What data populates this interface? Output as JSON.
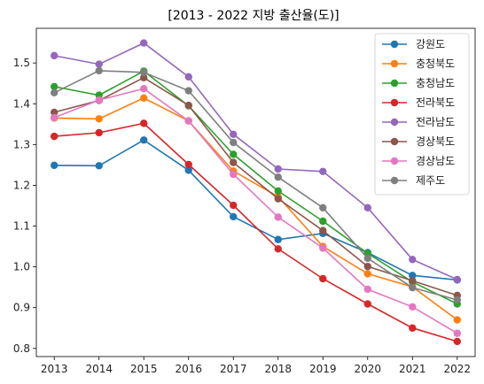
{
  "chart_data": {
    "type": "line",
    "title": "[2013 - 2022 지방 출산율(도)]",
    "xlabel": "",
    "ylabel": "",
    "x": [
      2013,
      2014,
      2015,
      2016,
      2017,
      2018,
      2019,
      2020,
      2021,
      2022
    ],
    "xlim": [
      2012.6,
      2022.4
    ],
    "ylim": [
      0.78,
      1.585
    ],
    "yticks": [
      0.8,
      0.9,
      1.0,
      1.1,
      1.2,
      1.3,
      1.4,
      1.5
    ],
    "ytick_labels": [
      "0.8",
      "0.9",
      "1.0",
      "1.1",
      "1.2",
      "1.3",
      "1.4",
      "1.5"
    ],
    "xtick_labels": [
      "2013",
      "2014",
      "2015",
      "2016",
      "2017",
      "2018",
      "2019",
      "2020",
      "2021",
      "2022"
    ],
    "grid": false,
    "legend_position": "top-right",
    "series": [
      {
        "name": "강원도",
        "color": "#1f77b4",
        "values": [
          1.249,
          1.248,
          1.311,
          1.237,
          1.123,
          1.067,
          1.082,
          1.035,
          0.979,
          0.968
        ]
      },
      {
        "name": "충청북도",
        "color": "#ff7f0e",
        "values": [
          1.365,
          1.363,
          1.414,
          1.358,
          1.235,
          1.172,
          1.05,
          0.983,
          0.951,
          0.87
        ]
      },
      {
        "name": "충청남도",
        "color": "#2ca02c",
        "values": [
          1.442,
          1.421,
          1.48,
          1.395,
          1.276,
          1.186,
          1.112,
          1.033,
          0.963,
          0.909
        ]
      },
      {
        "name": "전라북도",
        "color": "#d62728",
        "values": [
          1.32,
          1.329,
          1.352,
          1.251,
          1.151,
          1.044,
          0.971,
          0.909,
          0.85,
          0.817
        ]
      },
      {
        "name": "전라남도",
        "color": "#9467bd",
        "values": [
          1.518,
          1.497,
          1.549,
          1.466,
          1.325,
          1.24,
          1.234,
          1.145,
          1.018,
          0.969
        ]
      },
      {
        "name": "경상북도",
        "color": "#8c564b",
        "values": [
          1.379,
          1.408,
          1.464,
          1.396,
          1.256,
          1.167,
          1.089,
          1.001,
          0.966,
          0.93
        ]
      },
      {
        "name": "경상남도",
        "color": "#e377c2",
        "values": [
          1.366,
          1.409,
          1.437,
          1.358,
          1.227,
          1.122,
          1.046,
          0.945,
          0.902,
          0.837
        ]
      },
      {
        "name": "제주도",
        "color": "#7f7f7f",
        "values": [
          1.427,
          1.481,
          1.477,
          1.432,
          1.305,
          1.22,
          1.145,
          1.021,
          0.949,
          0.919
        ]
      }
    ]
  }
}
